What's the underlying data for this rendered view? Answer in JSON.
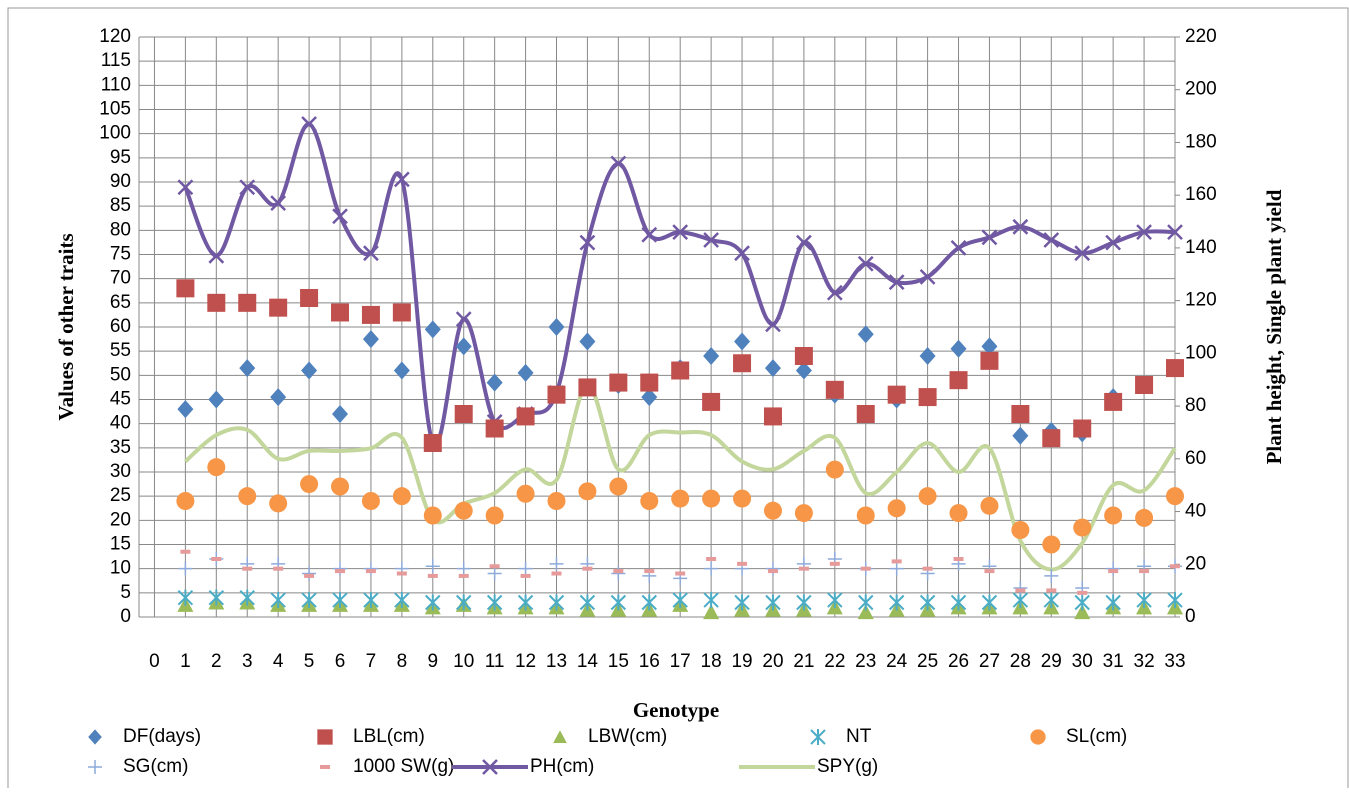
{
  "chart_data": {
    "type": "line",
    "x_label": "Genotype",
    "y_label": "Values of other traits",
    "y2_label": "Plant height, Single plant yield",
    "x": [
      1,
      2,
      3,
      4,
      5,
      6,
      7,
      8,
      9,
      10,
      11,
      12,
      13,
      14,
      15,
      16,
      17,
      18,
      19,
      20,
      21,
      22,
      23,
      24,
      25,
      26,
      27,
      28,
      29,
      30,
      31,
      32,
      33
    ],
    "xlim": [
      -0.5,
      33
    ],
    "xticks": [
      0,
      1,
      2,
      3,
      4,
      5,
      6,
      7,
      8,
      9,
      10,
      11,
      12,
      13,
      14,
      15,
      16,
      17,
      18,
      19,
      20,
      21,
      22,
      23,
      24,
      25,
      26,
      27,
      28,
      29,
      30,
      31,
      32,
      33
    ],
    "ylim": [
      0,
      120
    ],
    "yticks": [
      0,
      5,
      10,
      15,
      20,
      25,
      30,
      35,
      40,
      45,
      50,
      55,
      60,
      65,
      70,
      75,
      80,
      85,
      90,
      95,
      100,
      105,
      110,
      115,
      120
    ],
    "y2lim": [
      0,
      220
    ],
    "y2ticks": [
      0,
      20,
      40,
      60,
      80,
      100,
      120,
      140,
      160,
      180,
      200,
      220
    ],
    "grid": true,
    "series": [
      {
        "name": "DF(days)",
        "color": "#4f81bd",
        "marker": "diamond",
        "values": [
          43,
          45,
          51.5,
          45.5,
          51,
          42,
          57.5,
          51,
          59.5,
          56,
          48.5,
          50.5,
          60,
          57,
          48,
          45.5,
          51.5,
          54,
          57,
          51.5,
          51,
          46,
          58.5,
          45,
          54,
          55.5,
          56,
          37.5,
          38.5,
          38,
          45.5,
          48,
          51.5
        ]
      },
      {
        "name": "LBL(cm)",
        "color": "#c0504d",
        "marker": "square",
        "values": [
          68,
          65,
          65,
          64,
          66,
          63,
          62.5,
          63,
          36,
          42,
          39,
          41.5,
          46,
          47.5,
          48.5,
          48.5,
          51,
          44.5,
          52.5,
          41.5,
          54,
          47,
          42,
          46,
          45.5,
          49,
          53,
          42,
          37,
          39,
          44.5,
          48,
          51.5
        ]
      },
      {
        "name": "LBW(cm)",
        "color": "#9bbb59",
        "marker": "triangle",
        "values": [
          2.5,
          3,
          3,
          2.5,
          2.5,
          2.5,
          2.5,
          2.5,
          2,
          2.5,
          2,
          2,
          2,
          1.5,
          1.5,
          1.5,
          2.5,
          1,
          1.5,
          1.5,
          1.5,
          2,
          1,
          1.5,
          1.5,
          2,
          2,
          2,
          2,
          1,
          2,
          2,
          2
        ]
      },
      {
        "name": "NT",
        "color": "#4bacc6",
        "marker": "star",
        "values": [
          4,
          4,
          4,
          3.5,
          3.5,
          3.5,
          3.5,
          3.5,
          3,
          3,
          3,
          3,
          3,
          3,
          3,
          3,
          3.5,
          3.5,
          3,
          3,
          3,
          3.5,
          3,
          3,
          3,
          3,
          3,
          3.5,
          3.5,
          3,
          3,
          3.5,
          3.5
        ]
      },
      {
        "name": "SL(cm)",
        "color": "#f79646",
        "marker": "circle",
        "values": [
          24,
          31,
          25,
          23.5,
          27.5,
          27,
          24,
          25,
          21,
          22,
          21,
          25.5,
          24,
          26,
          27,
          24,
          24.5,
          24.5,
          24.5,
          22,
          21.5,
          30.5,
          21,
          22.5,
          25,
          21.5,
          23,
          18,
          15,
          18.5,
          21,
          20.5,
          25
        ]
      },
      {
        "name": "SG(cm)",
        "color": "#8eaadb",
        "marker": "plus",
        "values": [
          10,
          12,
          11,
          11,
          9,
          10,
          10,
          10,
          10.5,
          10,
          9,
          10,
          11,
          11,
          9,
          8.5,
          8,
          10,
          10,
          10,
          11,
          12,
          10,
          10,
          9,
          11,
          10.5,
          6,
          8.5,
          6,
          10,
          10.5,
          10.5
        ]
      },
      {
        "name": "1000 SW(g)",
        "color": "#e69a9a",
        "marker": "dash",
        "values": [
          13.5,
          12,
          10,
          10,
          8.5,
          9.5,
          9.5,
          9,
          8.5,
          8.5,
          10.5,
          8.5,
          9,
          10,
          9.5,
          9.5,
          9,
          12,
          11,
          9.5,
          10,
          11,
          10,
          11.5,
          10,
          12,
          9.5,
          5.5,
          5.5,
          5,
          9.5,
          9.5,
          10.5
        ]
      },
      {
        "name": "PH(cm)",
        "color": "#7058a3",
        "marker": "x",
        "line": true,
        "axis": "y2",
        "values": [
          163,
          137,
          163,
          157,
          187,
          152,
          138,
          166,
          66,
          113,
          74,
          77,
          85,
          142,
          172,
          145,
          146,
          143,
          138,
          111,
          142,
          123,
          134,
          127,
          129,
          140,
          144,
          148,
          143,
          138,
          142,
          146,
          146
        ]
      },
      {
        "name": "SPY(g)",
        "color": "#c3d69b",
        "line": true,
        "axis": "y2",
        "values": [
          59,
          69,
          71,
          60,
          63,
          63,
          64,
          68,
          37,
          43,
          47,
          56,
          52,
          88,
          56,
          69,
          70,
          69,
          59,
          56,
          63,
          68,
          47,
          55,
          66,
          55,
          64,
          29,
          18,
          28,
          50,
          48,
          64
        ]
      }
    ]
  }
}
